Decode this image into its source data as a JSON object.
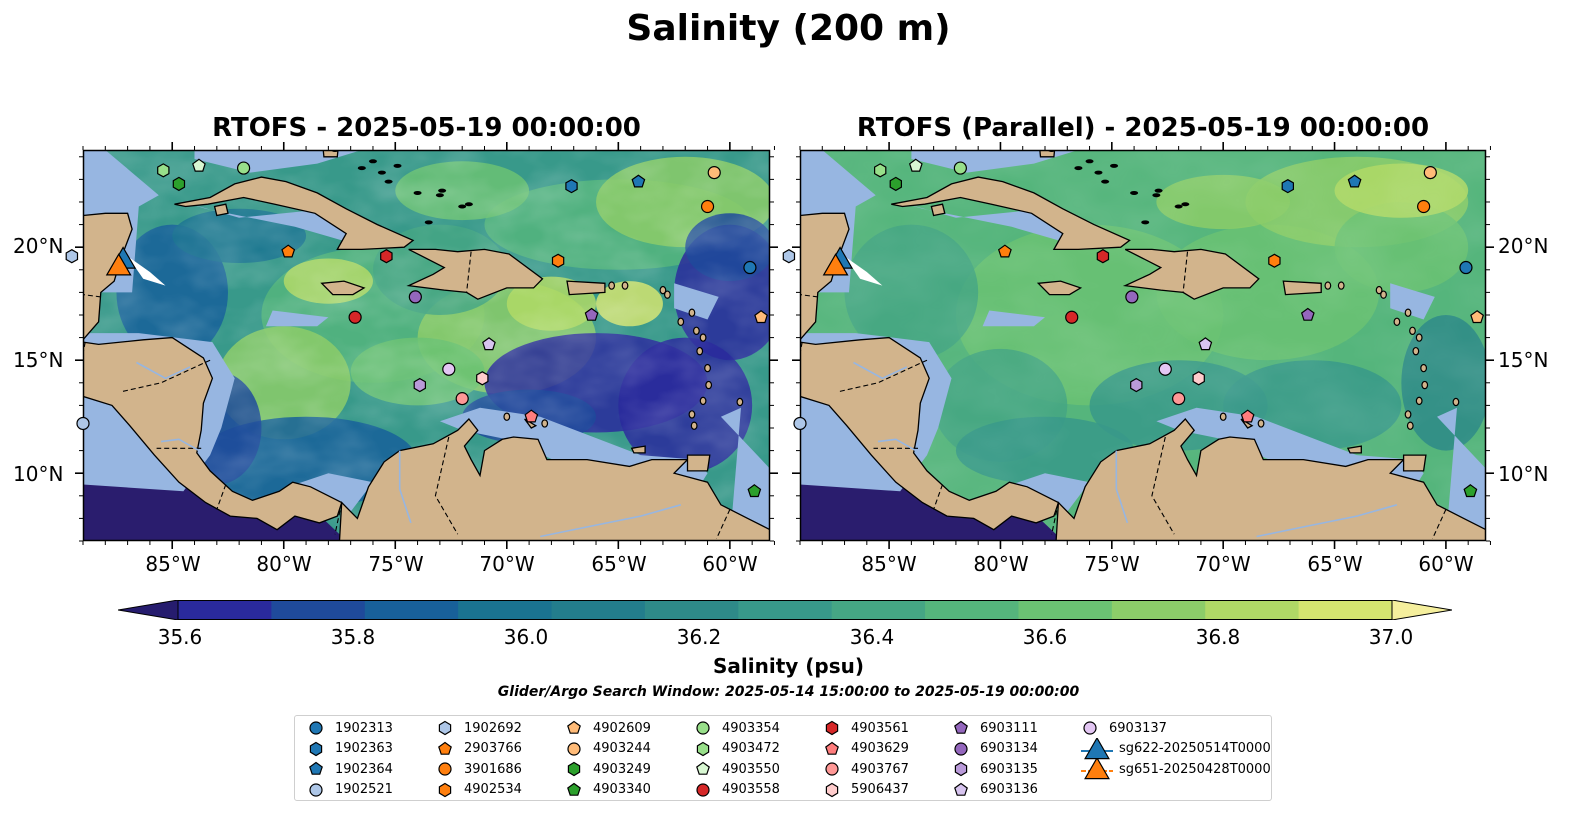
{
  "title": "Salinity (200 m)",
  "panels": [
    {
      "title": "RTOFS - 2025-05-19 00:00:00"
    },
    {
      "title": "RTOFS (Parallel) - 2025-05-19 00:00:00"
    }
  ],
  "map": {
    "lon_range": [
      -89,
      -58.2
    ],
    "lat_range": [
      7,
      24.3
    ],
    "lon_ticks": [
      -85,
      -80,
      -75,
      -70,
      -65,
      -60
    ],
    "lon_tick_labels": [
      "85°W",
      "80°W",
      "75°W",
      "70°W",
      "65°W",
      "60°W"
    ],
    "lat_ticks": [
      10,
      15,
      20
    ],
    "lat_tick_labels": [
      "10°N",
      "15°N",
      "20°N"
    ],
    "land_color": "#d2b48c",
    "shallow_color": "#97b6e1",
    "deep_color": "#2a1d6e"
  },
  "colorbar": {
    "label": "Salinity (psu)",
    "range": [
      35.6,
      37.0
    ],
    "ticks": [
      "35.6",
      "35.8",
      "36.0",
      "36.2",
      "36.4",
      "36.6",
      "36.8",
      "37.0"
    ],
    "colors": [
      "#261c6e",
      "#2a2a9c",
      "#1f4a9b",
      "#18609a",
      "#1a7391",
      "#237d8c",
      "#2e8a88",
      "#38998a",
      "#45a684",
      "#55b57c",
      "#6bc273",
      "#8ccd69",
      "#b0d966",
      "#d4e470",
      "#f5ef9d"
    ]
  },
  "search_window": "Glider/Argo Search Window: 2025-05-14 15:00:00 to 2025-05-19 00:00:00",
  "floats": [
    {
      "id": "1902313",
      "marker": "circle",
      "color": "#1f77b4",
      "lon": -59.1,
      "lat": 19.1
    },
    {
      "id": "1902363",
      "marker": "hexagon",
      "color": "#1f77b4",
      "lon": -67.1,
      "lat": 22.7
    },
    {
      "id": "1902364",
      "marker": "pentagon",
      "color": "#1f77b4",
      "lon": -64.1,
      "lat": 22.9
    },
    {
      "id": "1902521",
      "marker": "circle",
      "color": "#aec7e8",
      "lon": -89.0,
      "lat": 12.2
    },
    {
      "id": "1902692",
      "marker": "hexagon",
      "color": "#aec7e8",
      "lon": -89.5,
      "lat": 19.6
    },
    {
      "id": "2903766",
      "marker": "pentagon",
      "color": "#ff7f0e",
      "lon": -79.8,
      "lat": 19.8
    },
    {
      "id": "3901686",
      "marker": "circle",
      "color": "#ff7f0e",
      "lon": -61.0,
      "lat": 21.8
    },
    {
      "id": "4902534",
      "marker": "hexagon",
      "color": "#ff7f0e",
      "lon": -67.7,
      "lat": 19.4
    },
    {
      "id": "4902609",
      "marker": "pentagon",
      "color": "#ffbb78",
      "lon": -58.6,
      "lat": 16.9
    },
    {
      "id": "4903244",
      "marker": "circle",
      "color": "#ffbb78",
      "lon": -60.7,
      "lat": 23.3
    },
    {
      "id": "4903249",
      "marker": "hexagon",
      "color": "#2ca02c",
      "lon": -84.7,
      "lat": 22.8
    },
    {
      "id": "4903340",
      "marker": "pentagon",
      "color": "#2ca02c",
      "lon": -58.9,
      "lat": 9.2
    },
    {
      "id": "4903354",
      "marker": "circle",
      "color": "#98df8a",
      "lon": -81.8,
      "lat": 23.5
    },
    {
      "id": "4903472",
      "marker": "hexagon",
      "color": "#98df8a",
      "lon": -85.4,
      "lat": 23.4
    },
    {
      "id": "4903550",
      "marker": "pentagon",
      "color": "#d8f7d2",
      "lon": -83.8,
      "lat": 23.6
    },
    {
      "id": "4903558",
      "marker": "circle",
      "color": "#d62728",
      "lon": -76.8,
      "lat": 16.9
    },
    {
      "id": "4903561",
      "marker": "hexagon",
      "color": "#d62728",
      "lon": -75.4,
      "lat": 19.6
    },
    {
      "id": "4903629",
      "marker": "pentagon",
      "color": "#ff7d7d",
      "lon": -68.9,
      "lat": 12.5
    },
    {
      "id": "4903767",
      "marker": "circle",
      "color": "#ff9896",
      "lon": -72.0,
      "lat": 13.3
    },
    {
      "id": "5906437",
      "marker": "hexagon",
      "color": "#ffcccc",
      "lon": -71.1,
      "lat": 14.2
    },
    {
      "id": "6903111",
      "marker": "pentagon",
      "color": "#9467bd",
      "lon": -66.2,
      "lat": 17.0
    },
    {
      "id": "6903134",
      "marker": "circle",
      "color": "#9467bd",
      "lon": -74.1,
      "lat": 17.8
    },
    {
      "id": "6903135",
      "marker": "hexagon",
      "color": "#b99ad9",
      "lon": -73.9,
      "lat": 13.9
    },
    {
      "id": "6903136",
      "marker": "pentagon",
      "color": "#d7c4ef",
      "lon": -70.8,
      "lat": 15.7
    },
    {
      "id": "6903137",
      "marker": "circle",
      "color": "#e3c6f3",
      "lon": -72.6,
      "lat": 14.6
    },
    {
      "id": "sg622-20250514T0000",
      "marker": "triangle",
      "color": "#1f77b4",
      "lon": -87.2,
      "lat": 19.5
    },
    {
      "id": "sg651-20250428T0000",
      "marker": "triangle",
      "color": "#ff7f0e",
      "lon": -87.4,
      "lat": 19.2
    }
  ],
  "legend_columns": [
    [
      "1902313",
      "1902363",
      "1902364",
      "1902521"
    ],
    [
      "1902692",
      "2903766",
      "3901686",
      "4902534"
    ],
    [
      "4902609",
      "4903244",
      "4903249",
      "4903340"
    ],
    [
      "4903354",
      "4903472",
      "4903550",
      "4903558"
    ],
    [
      "4903561",
      "4903629",
      "4903767",
      "5906437"
    ],
    [
      "6903111",
      "6903134",
      "6903135",
      "6903136"
    ],
    [
      "6903137",
      "sg622-20250514T0000",
      "sg651-20250428T0000"
    ]
  ]
}
